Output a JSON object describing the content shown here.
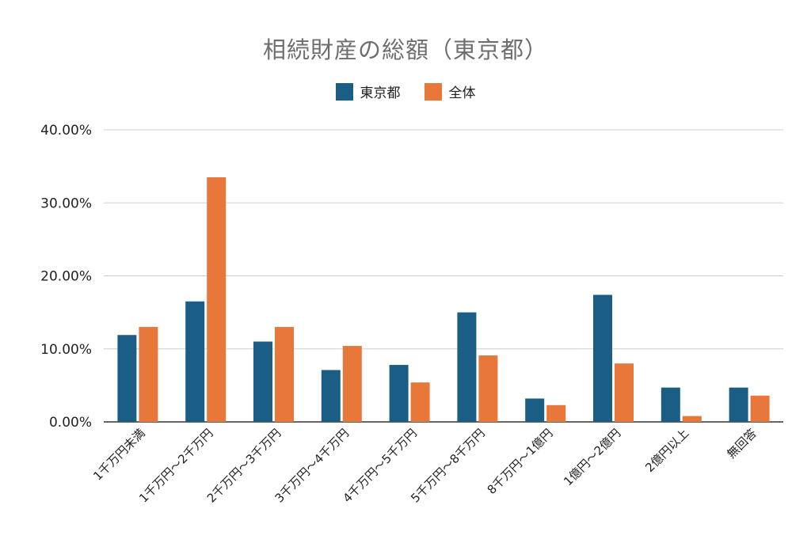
{
  "chart_data": {
    "type": "bar",
    "title": "相続財産の総額（東京都）",
    "categories": [
      "1千万円未満",
      "1千万円～2千万円",
      "2千万円～3千万円",
      "3千万円～4千万円",
      "4千万円～5千万円",
      "5千万円～8千万円",
      "8千万円～1億円",
      "1億円～2億円",
      "2億円以上",
      "無回答"
    ],
    "series": [
      {
        "name": "東京都",
        "color": "#1b5e85",
        "values": [
          11.9,
          16.5,
          11.0,
          7.1,
          7.8,
          15.0,
          3.2,
          17.4,
          4.7,
          4.7
        ]
      },
      {
        "name": "全体",
        "color": "#e8773a",
        "values": [
          13.0,
          33.5,
          13.0,
          10.4,
          5.4,
          9.1,
          2.3,
          8.0,
          0.8,
          3.6
        ]
      }
    ],
    "ylim": [
      0,
      40
    ],
    "yticks": [
      0,
      10,
      20,
      30,
      40
    ],
    "ytick_labels": [
      "0.00%",
      "10.00%",
      "20.00%",
      "30.00%",
      "40.00%"
    ],
    "xlabel": "",
    "ylabel": "",
    "grid": true,
    "legend_position": "top-center"
  }
}
